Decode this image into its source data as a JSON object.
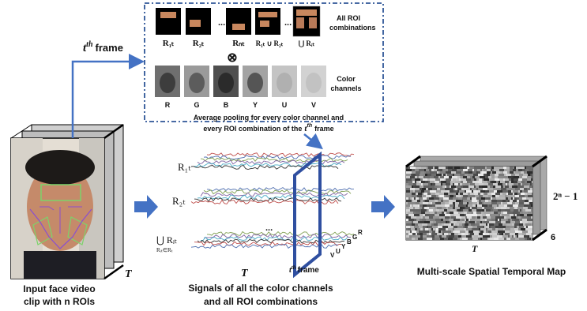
{
  "frame_label": {
    "t": "t",
    "sup": "th",
    "word": "frame"
  },
  "roi_panel": {
    "title_line1": "All ROI",
    "title_line2": "combinations",
    "labels": [
      "R₁ₜ",
      "R₂ₜ",
      "Rₙₜ",
      "R₁ₜ ∪ R₂ₜ",
      "⋃ Rᵢₜ"
    ],
    "dots": "...",
    "otimes": "⊗"
  },
  "color_panel": {
    "title_line1": "Color",
    "title_line2": "channels",
    "labels": [
      "R",
      "G",
      "B",
      "Y",
      "U",
      "V"
    ]
  },
  "pooling_text": {
    "line1": "Average pooling for every color channel and",
    "line2_prefix": "every ROI combination of the",
    "line2_t": "t",
    "line2_sup": "th",
    "line2_suffix": "frame"
  },
  "input_video": {
    "caption_line1": "Input face video",
    "caption_line2": "clip with n ROIs",
    "T": "T"
  },
  "signals": {
    "row_labels": [
      "R₁ₜ",
      "R₂ₜ",
      "⋃ Rᵢₜ"
    ],
    "row_label_sub": "Rᵢₜ∈Rₜ",
    "dots": "...",
    "T": "T",
    "frame_t": "t",
    "frame_sup": "th",
    "frame_word": "frame",
    "channels": [
      "V",
      "U",
      "Y",
      "B",
      "G",
      "R"
    ],
    "caption_line1": "Signals of all  the color channels",
    "caption_line2": "and all ROI combinations"
  },
  "map": {
    "side_label": "2ⁿ − 1",
    "depth_label": "6",
    "T": "T",
    "caption": "Multi-scale Spatial Temporal Map"
  },
  "colors": {
    "accent_blue": "#4472c4",
    "frame_blue": "#2f4fa0",
    "dashed_border": "#2e5597",
    "signal_colors": [
      "#c0504d",
      "#4f6fb0",
      "#7f9f50",
      "#8064a2",
      "#4bacc6",
      "#333333"
    ]
  }
}
